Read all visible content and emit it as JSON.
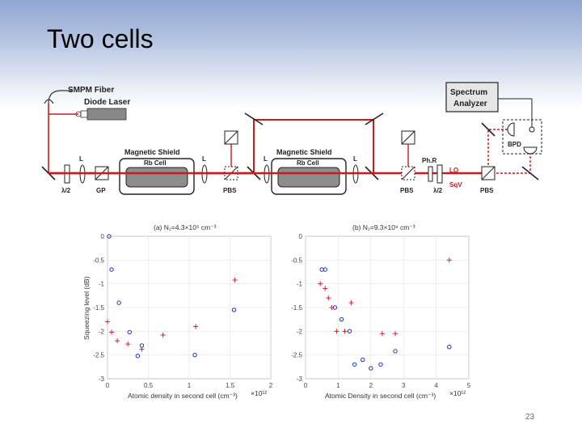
{
  "slide": {
    "title": "Two cells",
    "page_number": "23"
  },
  "setup": {
    "laser_label_1": "SMPM Fiber",
    "laser_label_2": "Diode Laser",
    "shield_1": "Magnetic Shield",
    "shield_2": "Magnetic Shield",
    "cell_1": "Rb Cell",
    "cell_2": "Rb Cell",
    "analyzer_1": "Spectrum",
    "analyzer_2": "Analyzer",
    "bpd": "BPD",
    "lo": "LO",
    "sqv": "SqV",
    "phr": "Ph.R",
    "lens": "L",
    "half_wave": "λ/2",
    "gp": "GP",
    "pbs": "PBS"
  },
  "chart_data": [
    {
      "type": "scatter",
      "title": "(a) N₁=4.3×10⁵ cm⁻³",
      "xlabel": "Atomic density in second cell (cm⁻³)",
      "x_multiplier": "×10¹²",
      "ylabel": "Squeezing level (dB)",
      "xlim": [
        0,
        2
      ],
      "ylim": [
        -3,
        0
      ],
      "x_ticks": [
        "0",
        "0.5",
        "1",
        "1.5",
        "2"
      ],
      "y_ticks": [
        "0",
        "-0.5",
        "-1",
        "-1.5",
        "-2",
        "-2.5",
        "-3"
      ],
      "grid": true,
      "series": [
        {
          "marker": "circle",
          "color": "#2233aa",
          "x": [
            0.02,
            0.05,
            0.14,
            0.27,
            0.42,
            0.37,
            1.07,
            1.55
          ],
          "y": [
            0.0,
            -0.7,
            -1.4,
            -2.02,
            -2.3,
            -2.52,
            -2.5,
            -1.55
          ]
        },
        {
          "marker": "plus",
          "color": "#cc2233",
          "x": [
            0.0,
            0.05,
            0.12,
            0.25,
            0.42,
            0.68,
            1.08,
            1.56
          ],
          "y": [
            -1.8,
            -2.02,
            -2.2,
            -2.27,
            -2.38,
            -2.08,
            -1.9,
            -0.92
          ]
        }
      ]
    },
    {
      "type": "scatter",
      "title": "(b) N₁=9.3×10⁹ cm⁻³",
      "xlabel": "Atomic Density in second cell (cm⁻³)",
      "x_multiplier": "×10¹²",
      "ylabel": "",
      "xlim": [
        0,
        5
      ],
      "ylim": [
        -3,
        0
      ],
      "x_ticks": [
        "0",
        "1",
        "2",
        "3",
        "4",
        "5"
      ],
      "y_ticks": [
        "0",
        "-0.5",
        "-1",
        "-1.5",
        "-2",
        "-2.5",
        "-3"
      ],
      "grid": true,
      "series": [
        {
          "marker": "circle",
          "color": "#2233aa",
          "x": [
            0.5,
            0.6,
            0.9,
            1.1,
            1.35,
            1.5,
            1.75,
            2.0,
            2.3,
            2.75,
            4.4
          ],
          "y": [
            -0.7,
            -0.7,
            -1.5,
            -1.75,
            -2.0,
            -2.7,
            -2.6,
            -2.78,
            -2.7,
            -2.42,
            -2.33
          ]
        },
        {
          "marker": "plus",
          "color": "#cc2233",
          "x": [
            0.45,
            0.6,
            0.7,
            0.8,
            0.95,
            1.2,
            1.4,
            2.35,
            2.75,
            4.4
          ],
          "y": [
            -1.0,
            -1.1,
            -1.3,
            -1.5,
            -2.0,
            -2.0,
            -1.4,
            -2.05,
            -2.05,
            -0.5
          ]
        }
      ]
    }
  ]
}
